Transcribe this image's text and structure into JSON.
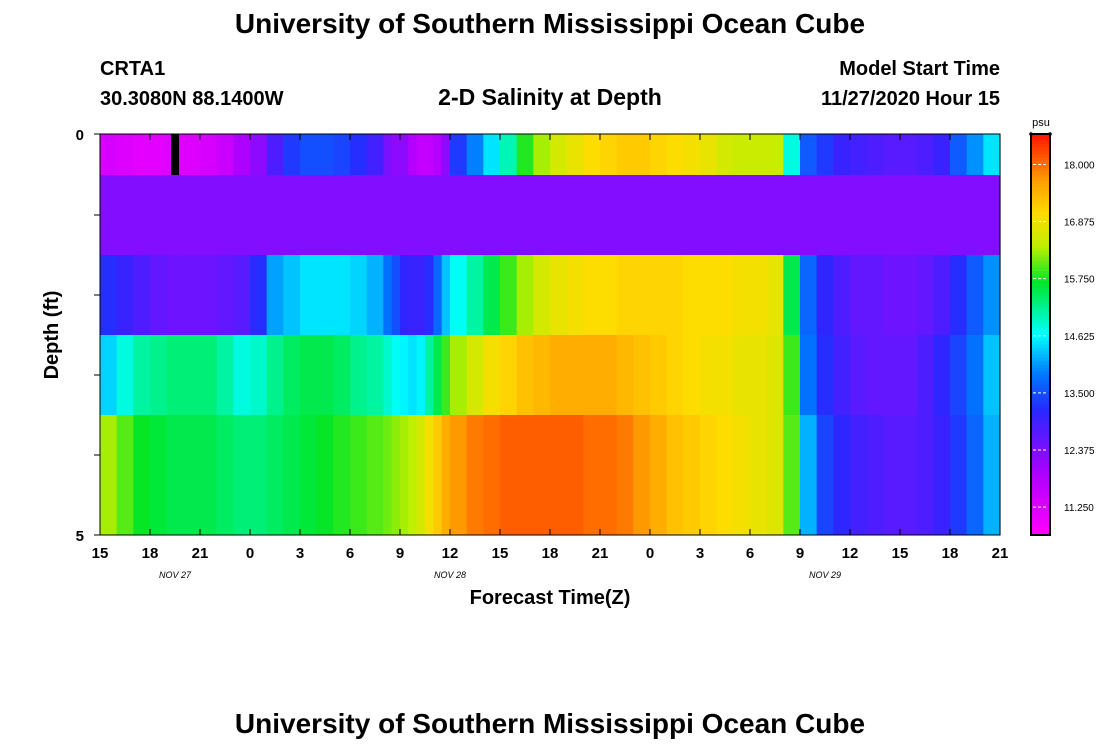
{
  "header": {
    "title": "University of Southern Mississippi Ocean Cube",
    "station": "CRTA1",
    "coords": "30.3080N 88.1400W",
    "subtitle": "2-D Salinity at Depth",
    "start_label": "Model Start Time",
    "start_value": "11/27/2020 Hour 15"
  },
  "footer": {
    "title": "University of Southern Mississippi Ocean Cube"
  },
  "chart_data": {
    "type": "heatmap",
    "title": "2-D Salinity at Depth",
    "xlabel": "Forecast Time(Z)",
    "ylabel": "Depth (ft)",
    "x_start_hour": 0,
    "x_end_hour": 54,
    "x_tick_labels": [
      "15",
      "18",
      "21",
      "0",
      "3",
      "6",
      "9",
      "12",
      "15",
      "18",
      "21",
      "0",
      "3",
      "6",
      "9",
      "12",
      "15",
      "18",
      "21"
    ],
    "date_labels": [
      {
        "hour": 4.5,
        "text": "NOV  27"
      },
      {
        "hour": 21,
        "text": "NOV  28"
      },
      {
        "hour": 43.5,
        "text": "NOV  29"
      }
    ],
    "y_range": [
      0,
      5
    ],
    "y_tick_labels": [
      "0",
      "5"
    ],
    "layer_count": 5,
    "colorbar": {
      "unit": "psu",
      "min": 10.7,
      "max": 18.6,
      "tick_labels": [
        "11.250",
        "12.375",
        "13.500",
        "14.625",
        "15.750",
        "16.875",
        "18.000"
      ],
      "tick_values": [
        11.25,
        12.375,
        13.5,
        14.625,
        15.75,
        16.875,
        18.0
      ]
    },
    "marker": {
      "hour": 4.5,
      "row": 0
    },
    "series": [
      {
        "name": "surface",
        "hours": [
          0,
          1,
          2,
          3,
          4,
          5,
          6,
          7,
          8,
          9,
          10,
          11,
          12,
          13,
          14,
          15,
          16,
          17,
          17.5,
          18,
          18.5,
          19,
          19.5,
          20,
          20.5,
          21,
          22,
          23,
          24,
          25,
          26,
          27,
          28,
          29,
          30,
          31,
          32,
          33,
          34,
          35,
          36,
          37,
          38,
          39,
          40,
          41,
          42,
          43,
          44,
          45,
          46,
          47,
          48,
          49,
          50,
          51,
          52,
          53,
          54
        ],
        "values": [
          11.3,
          11.2,
          11.1,
          11.1,
          11.2,
          11.2,
          11.3,
          11.5,
          11.9,
          12.2,
          12.8,
          13.3,
          13.5,
          13.5,
          13.4,
          13.2,
          12.9,
          12.4,
          12.2,
          12.2,
          11.8,
          11.6,
          11.6,
          11.8,
          12.2,
          13.3,
          13.9,
          14.5,
          15.0,
          15.8,
          16.3,
          16.6,
          16.8,
          17.0,
          17.1,
          17.2,
          17.2,
          17.1,
          17.0,
          16.9,
          16.8,
          16.6,
          16.5,
          16.5,
          16.5,
          14.8,
          13.6,
          13.3,
          13.0,
          12.9,
          12.8,
          12.7,
          12.7,
          12.8,
          13.0,
          13.6,
          14.0,
          14.5,
          14.8
        ]
      },
      {
        "name": "layer2",
        "hours": [
          0,
          1,
          2,
          3,
          4,
          5,
          6,
          7,
          8,
          9,
          10,
          11,
          12,
          13,
          14,
          15,
          16,
          17,
          17.5,
          18,
          18.5,
          19,
          19.5,
          20,
          20.5,
          21,
          22,
          23,
          24,
          25,
          26,
          27,
          28,
          29,
          30,
          31,
          32,
          33,
          34,
          35,
          36,
          37,
          38,
          39,
          40,
          41,
          42,
          43,
          44,
          45,
          46,
          47,
          48,
          49,
          50,
          51,
          52,
          53,
          54
        ],
        "values": [
          12.3,
          12.3,
          12.3,
          12.3,
          12.3,
          12.3,
          12.3,
          12.3,
          12.3,
          12.3,
          12.3,
          12.3,
          12.3,
          12.3,
          12.3,
          12.3,
          12.3,
          12.3,
          12.3,
          12.3,
          12.3,
          12.3,
          12.3,
          12.3,
          12.3,
          12.3,
          12.3,
          12.3,
          12.3,
          12.3,
          12.3,
          12.3,
          12.3,
          12.3,
          12.3,
          12.3,
          12.3,
          12.3,
          12.3,
          12.3,
          12.3,
          12.3,
          12.3,
          12.3,
          12.3,
          12.3,
          12.3,
          12.3,
          12.3,
          12.3,
          12.3,
          12.3,
          12.3,
          12.3,
          12.3,
          12.3,
          12.3,
          12.3,
          12.3
        ]
      },
      {
        "name": "layer3",
        "hours": [
          0,
          1,
          2,
          3,
          4,
          5,
          6,
          7,
          8,
          9,
          10,
          11,
          12,
          13,
          14,
          15,
          16,
          17,
          17.5,
          18,
          18.5,
          19,
          19.5,
          20,
          20.5,
          21,
          22,
          23,
          24,
          25,
          26,
          27,
          28,
          29,
          30,
          31,
          32,
          33,
          34,
          35,
          36,
          37,
          38,
          39,
          40,
          41,
          42,
          43,
          44,
          45,
          46,
          47,
          48,
          49,
          50,
          51,
          52,
          53,
          54
        ],
        "values": [
          13.2,
          13.0,
          12.8,
          12.6,
          12.5,
          12.5,
          12.5,
          12.6,
          12.7,
          13.2,
          14.1,
          14.3,
          14.5,
          14.5,
          14.5,
          14.4,
          14.2,
          13.8,
          13.5,
          13.1,
          13.0,
          13.0,
          13.2,
          13.7,
          14.3,
          14.7,
          15.1,
          15.5,
          15.9,
          16.3,
          16.6,
          16.8,
          16.9,
          17.0,
          17.0,
          17.1,
          17.1,
          17.1,
          17.1,
          17.0,
          17.0,
          17.0,
          16.9,
          16.9,
          16.8,
          15.5,
          13.7,
          13.1,
          12.8,
          12.6,
          12.6,
          12.5,
          12.5,
          12.6,
          12.8,
          13.2,
          13.6,
          14.0,
          14.3
        ]
      },
      {
        "name": "layer4",
        "hours": [
          0,
          1,
          2,
          3,
          4,
          5,
          6,
          7,
          8,
          9,
          10,
          11,
          12,
          13,
          14,
          15,
          16,
          17,
          17.5,
          18,
          18.5,
          19,
          19.5,
          20,
          20.5,
          21,
          22,
          23,
          24,
          25,
          26,
          27,
          28,
          29,
          30,
          31,
          32,
          33,
          34,
          35,
          36,
          37,
          38,
          39,
          40,
          41,
          42,
          43,
          44,
          45,
          46,
          47,
          48,
          49,
          50,
          51,
          52,
          53,
          54
        ],
        "values": [
          14.4,
          14.8,
          15.1,
          15.2,
          15.3,
          15.3,
          15.3,
          15.1,
          14.8,
          14.9,
          15.2,
          15.4,
          15.5,
          15.5,
          15.4,
          15.2,
          15.1,
          14.9,
          14.7,
          14.6,
          14.5,
          14.6,
          15.1,
          15.5,
          15.9,
          16.3,
          16.6,
          16.9,
          17.1,
          17.3,
          17.4,
          17.5,
          17.5,
          17.5,
          17.5,
          17.4,
          17.3,
          17.2,
          17.1,
          17.0,
          16.9,
          16.9,
          16.8,
          16.8,
          16.7,
          15.9,
          13.8,
          13.2,
          12.9,
          12.7,
          12.6,
          12.6,
          12.6,
          12.8,
          13.1,
          13.4,
          13.8,
          14.3,
          14.7
        ]
      },
      {
        "name": "bottom",
        "hours": [
          0,
          1,
          2,
          3,
          4,
          5,
          6,
          7,
          8,
          9,
          10,
          11,
          12,
          13,
          14,
          15,
          16,
          17,
          17.5,
          18,
          18.5,
          19,
          19.5,
          20,
          20.5,
          21,
          22,
          23,
          24,
          25,
          26,
          27,
          28,
          29,
          30,
          31,
          32,
          33,
          34,
          35,
          36,
          37,
          38,
          39,
          40,
          41,
          42,
          43,
          44,
          45,
          46,
          47,
          48,
          49,
          50,
          51,
          52,
          53,
          54
        ],
        "values": [
          16.3,
          16.0,
          15.7,
          15.6,
          15.5,
          15.5,
          15.5,
          15.4,
          15.3,
          15.3,
          15.4,
          15.5,
          15.6,
          15.7,
          15.8,
          15.9,
          16.0,
          16.1,
          16.2,
          16.3,
          16.4,
          16.6,
          16.9,
          17.2,
          17.5,
          17.7,
          17.9,
          18.0,
          18.1,
          18.1,
          18.1,
          18.1,
          18.1,
          18.0,
          18.0,
          17.9,
          17.7,
          17.5,
          17.3,
          17.2,
          17.1,
          17.0,
          16.9,
          16.8,
          16.7,
          16.0,
          14.2,
          13.4,
          13.1,
          12.9,
          12.8,
          12.7,
          12.7,
          12.8,
          13.0,
          13.3,
          13.7,
          14.2,
          14.6
        ]
      }
    ]
  }
}
